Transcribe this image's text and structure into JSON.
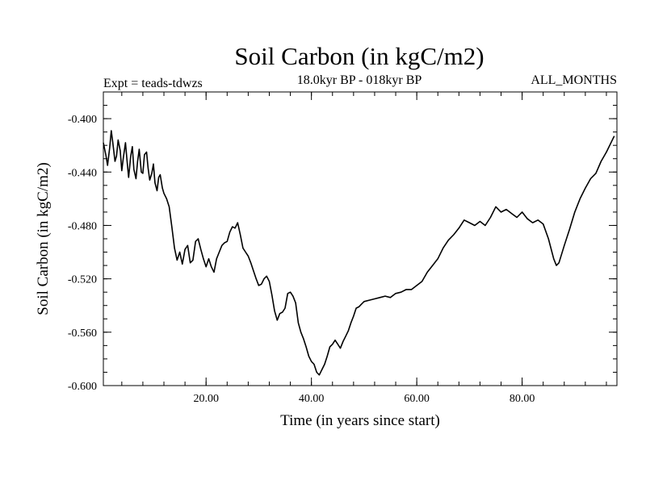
{
  "chart_data": {
    "type": "line",
    "title": "Soil Carbon (in kgC/m2)",
    "subtitle": "18.0kyr BP - 018kyr BP",
    "expt_label": "Expt = teads-tdwzs",
    "period_label": "ALL_MONTHS",
    "xlabel": "Time (in years since start)",
    "ylabel": "Soil Carbon (in kgC/m2)",
    "xlim": [
      0.5,
      98
    ],
    "ylim": [
      -0.6,
      -0.38
    ],
    "x_ticks": [
      20,
      40,
      60,
      80
    ],
    "x_tick_labels": [
      "20.00",
      "40.00",
      "60.00",
      "80.00"
    ],
    "y_ticks": [
      -0.6,
      -0.56,
      -0.52,
      -0.48,
      -0.44,
      -0.4
    ],
    "y_tick_labels": [
      "-0.600",
      "-0.560",
      "-0.520",
      "-0.480",
      "-0.440",
      "-0.400"
    ],
    "grid": false,
    "series": [
      {
        "name": "Soil Carbon",
        "x": [
          0.5,
          1.0,
          1.3,
          1.7,
          2.0,
          2.3,
          2.7,
          3.0,
          3.3,
          3.7,
          4.0,
          4.3,
          4.7,
          5.0,
          5.3,
          5.7,
          6.0,
          6.3,
          6.7,
          7.0,
          7.3,
          7.7,
          8.0,
          8.3,
          8.7,
          9.0,
          9.3,
          9.7,
          10.0,
          10.3,
          10.7,
          11.0,
          11.3,
          11.7,
          12.0,
          12.5,
          13.0,
          13.5,
          14.0,
          14.5,
          15.0,
          15.5,
          16.0,
          16.5,
          17.0,
          17.5,
          18.0,
          18.5,
          19.0,
          19.5,
          20.0,
          20.5,
          21.0,
          21.5,
          22.0,
          22.5,
          23.0,
          23.5,
          24.0,
          24.5,
          25.0,
          25.5,
          26.0,
          26.5,
          27.0,
          27.5,
          28.0,
          28.5,
          29.0,
          29.5,
          30.0,
          30.5,
          31.0,
          31.5,
          32.0,
          32.5,
          33.0,
          33.5,
          34.0,
          34.5,
          35.0,
          35.5,
          36.0,
          36.5,
          37.0,
          37.5,
          38.0,
          38.5,
          39.0,
          39.5,
          40.0,
          40.5,
          41.0,
          41.5,
          42.0,
          42.5,
          43.0,
          43.5,
          44.0,
          44.5,
          45.0,
          45.5,
          46.0,
          46.5,
          47.0,
          47.5,
          48.0,
          48.5,
          49.0,
          49.5,
          50.0,
          51.0,
          52.0,
          53.0,
          54.0,
          55.0,
          56.0,
          57.0,
          58.0,
          59.0,
          60.0,
          61.0,
          62.0,
          63.0,
          64.0,
          65.0,
          66.0,
          67.0,
          68.0,
          69.0,
          70.0,
          71.0,
          72.0,
          73.0,
          74.0,
          75.0,
          75.5,
          76.0,
          77.0,
          78.0,
          79.0,
          80.0,
          81.0,
          82.0,
          83.0,
          84.0,
          85.0,
          86.0,
          86.5,
          87.0,
          88.0,
          89.0,
          90.0,
          91.0,
          92.0,
          93.0,
          94.0,
          95.0,
          96.0,
          97.0,
          97.5
        ],
        "values": [
          -0.418,
          -0.428,
          -0.435,
          -0.422,
          -0.409,
          -0.418,
          -0.432,
          -0.428,
          -0.416,
          -0.424,
          -0.439,
          -0.429,
          -0.418,
          -0.432,
          -0.444,
          -0.428,
          -0.421,
          -0.438,
          -0.445,
          -0.432,
          -0.423,
          -0.44,
          -0.441,
          -0.427,
          -0.425,
          -0.437,
          -0.446,
          -0.441,
          -0.434,
          -0.448,
          -0.454,
          -0.444,
          -0.442,
          -0.452,
          -0.456,
          -0.46,
          -0.466,
          -0.481,
          -0.497,
          -0.506,
          -0.5,
          -0.509,
          -0.498,
          -0.495,
          -0.508,
          -0.506,
          -0.492,
          -0.49,
          -0.498,
          -0.505,
          -0.511,
          -0.505,
          -0.511,
          -0.515,
          -0.505,
          -0.5,
          -0.495,
          -0.493,
          -0.492,
          -0.485,
          -0.481,
          -0.482,
          -0.478,
          -0.487,
          -0.497,
          -0.5,
          -0.503,
          -0.508,
          -0.514,
          -0.52,
          -0.525,
          -0.524,
          -0.52,
          -0.518,
          -0.522,
          -0.532,
          -0.544,
          -0.551,
          -0.546,
          -0.545,
          -0.542,
          -0.531,
          -0.53,
          -0.533,
          -0.538,
          -0.553,
          -0.56,
          -0.565,
          -0.571,
          -0.578,
          -0.582,
          -0.584,
          -0.59,
          -0.592,
          -0.588,
          -0.584,
          -0.578,
          -0.571,
          -0.569,
          -0.566,
          -0.569,
          -0.572,
          -0.567,
          -0.563,
          -0.559,
          -0.553,
          -0.548,
          -0.542,
          -0.541,
          -0.539,
          -0.537,
          -0.536,
          -0.535,
          -0.534,
          -0.533,
          -0.534,
          -0.531,
          -0.53,
          -0.528,
          -0.528,
          -0.525,
          -0.522,
          -0.515,
          -0.51,
          -0.505,
          -0.497,
          -0.491,
          -0.487,
          -0.482,
          -0.476,
          -0.478,
          -0.48,
          -0.477,
          -0.48,
          -0.474,
          -0.466,
          -0.468,
          -0.47,
          -0.468,
          -0.471,
          -0.474,
          -0.47,
          -0.475,
          -0.478,
          -0.476,
          -0.479,
          -0.49,
          -0.505,
          -0.51,
          -0.508,
          -0.495,
          -0.483,
          -0.47,
          -0.46,
          -0.452,
          -0.445,
          -0.441,
          -0.432,
          -0.425,
          -0.417,
          -0.413
        ]
      }
    ]
  }
}
